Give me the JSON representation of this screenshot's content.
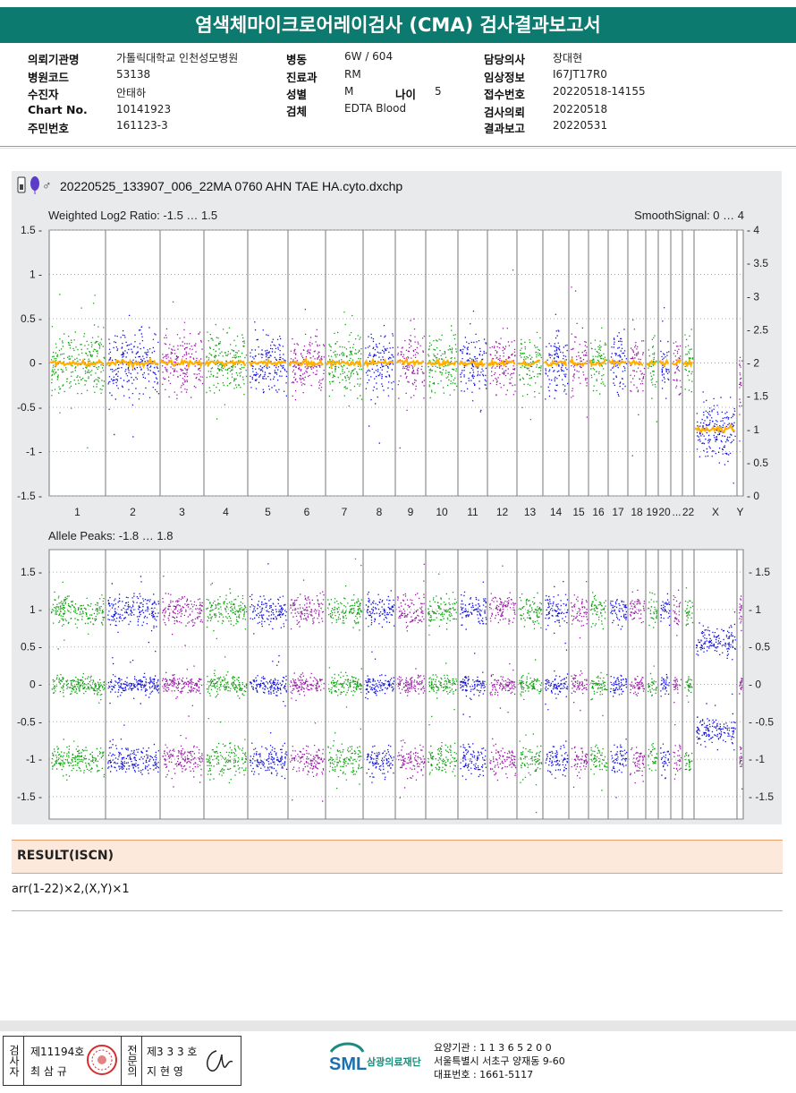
{
  "report_title": "염색체마이크로어레이검사 (CMA) 검사결과보고서",
  "patient_info": {
    "col1": [
      {
        "label": "의뢰기관명",
        "value": "가톨릭대학교 인천성모병원"
      },
      {
        "label": "병원코드",
        "value": "53138"
      },
      {
        "label": "수진자",
        "value": "안태하"
      },
      {
        "label": "Chart No.",
        "value": "10141923"
      },
      {
        "label": "주민번호",
        "value": "161123-3"
      }
    ],
    "col2": [
      {
        "label": "병동",
        "value": "6W / 604"
      },
      {
        "label": "진료과",
        "value": "RM"
      },
      {
        "label": "성별",
        "value": "M"
      },
      {
        "label": "검체",
        "value": "EDTA Blood"
      }
    ],
    "age_label": "나이",
    "age_value": "5",
    "col3": [
      {
        "label": "담당의사",
        "value": "장대현"
      },
      {
        "label": "임상정보",
        "value": "I67JT17R0"
      },
      {
        "label": "접수번호",
        "value": "20220518-14155"
      },
      {
        "label": "검사의뢰",
        "value": "20220518"
      },
      {
        "label": "결과보고",
        "value": "20220531"
      }
    ]
  },
  "plot_file": "20220525_133907_006_22MA 0760 AHN TAE HA.cyto.dxchp",
  "icons": [
    "chip-icon",
    "balloon-icon",
    "male-symbol-icon"
  ],
  "chart_data": [
    {
      "type": "scatter",
      "title": "Weighted Log2 Ratio: -1.5 … 1.5",
      "right_title": "SmoothSignal: 0 … 4",
      "ylim": [
        -1.5,
        1.5
      ],
      "y2lim": [
        0,
        4
      ],
      "yticks": [
        "1.5",
        "1",
        "0.5",
        "0",
        "-0.5",
        "-1",
        "-1.5"
      ],
      "y2ticks": [
        "4",
        "3.5",
        "3",
        "2.5",
        "2",
        "1.5",
        "1",
        "0.5",
        "0"
      ],
      "x_categories": [
        "1",
        "2",
        "3",
        "4",
        "5",
        "6",
        "7",
        "8",
        "9",
        "10",
        "11",
        "12",
        "13",
        "14",
        "15",
        "16",
        "17",
        "18",
        "19",
        "20",
        "...",
        "22",
        "X",
        "Y"
      ],
      "series": [
        {
          "name": "",
          "values": {
            "autosomes": 0,
            "X": -0.75,
            "Y": -0.3
          }
        },
        {
          "name": "",
          "values": {
            "autosomes": 2,
            "X": 1.0
          }
        }
      ],
      "colors": {
        "green": "#12a012",
        "blue": "#1010e0",
        "purple": "#9a1aa8",
        "orange": "#ffb000"
      }
    },
    {
      "type": "scatter",
      "title": "Allele Peaks: -1.8 … 1.8",
      "ylim": [
        -1.8,
        1.8
      ],
      "yticks": [
        "1.5",
        "1",
        "0.5",
        "0",
        "-0.5",
        "-1",
        "-1.5"
      ],
      "y2ticks": [
        "1.5",
        "1",
        "0.5",
        "0",
        "-0.5",
        "-1",
        "-1.5"
      ],
      "bands": {
        "autosomes": [
          1.0,
          0.0,
          -1.0
        ],
        "X": [
          0.6,
          -0.6
        ]
      }
    }
  ],
  "result": {
    "heading": "RESULT(ISCN)",
    "text": "arr(1-22)×2,(X,Y)×1"
  },
  "signatures": {
    "label_a": "검사자",
    "no_a": "제11194호",
    "name_a": "최 삼 규",
    "label_b": "전문의",
    "no_b": "제3 3 3 호",
    "name_b": "지 현 영"
  },
  "lab": {
    "logo": "SML",
    "name": "삼광의료재단",
    "line1": "요양기관 : 1 1 3 6 5 2 0 0",
    "line2": "서울특별시 서초구 양재동 9-60",
    "line3": "대표번호 : 1661-5117"
  }
}
